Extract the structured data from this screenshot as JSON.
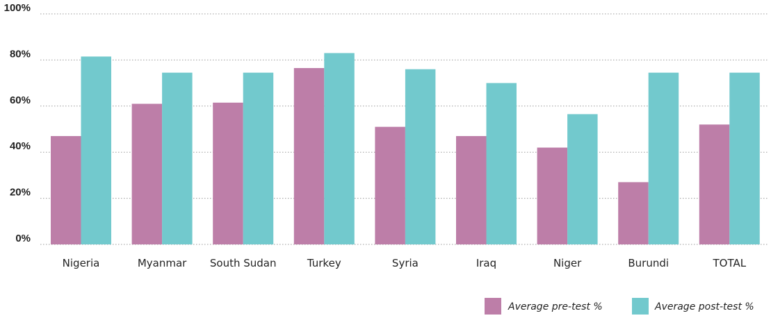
{
  "chart_data": {
    "type": "bar",
    "categories": [
      "Nigeria",
      "Myanmar",
      "South Sudan",
      "Turkey",
      "Syria",
      "Iraq",
      "Niger",
      "Burundi",
      "TOTAL"
    ],
    "series": [
      {
        "name": "Average pre-test %",
        "color": "#bd7ea8",
        "values": [
          47,
          61,
          61.5,
          76.5,
          51,
          47,
          42,
          27,
          52
        ]
      },
      {
        "name": "Average post-test %",
        "color": "#72c9cd",
        "values": [
          81.5,
          74.5,
          74.5,
          83,
          76,
          70,
          56.5,
          74.5,
          74.5
        ]
      }
    ],
    "ylim": [
      0,
      100
    ],
    "yticks": [
      0,
      20,
      40,
      60,
      80,
      100
    ],
    "ytick_labels": [
      "0%",
      "20%",
      "40%",
      "60%",
      "80%",
      "100%"
    ],
    "grid": true,
    "grid_style": "dotted",
    "legend_position": "bottom-right",
    "title": "",
    "xlabel": "",
    "ylabel": ""
  }
}
